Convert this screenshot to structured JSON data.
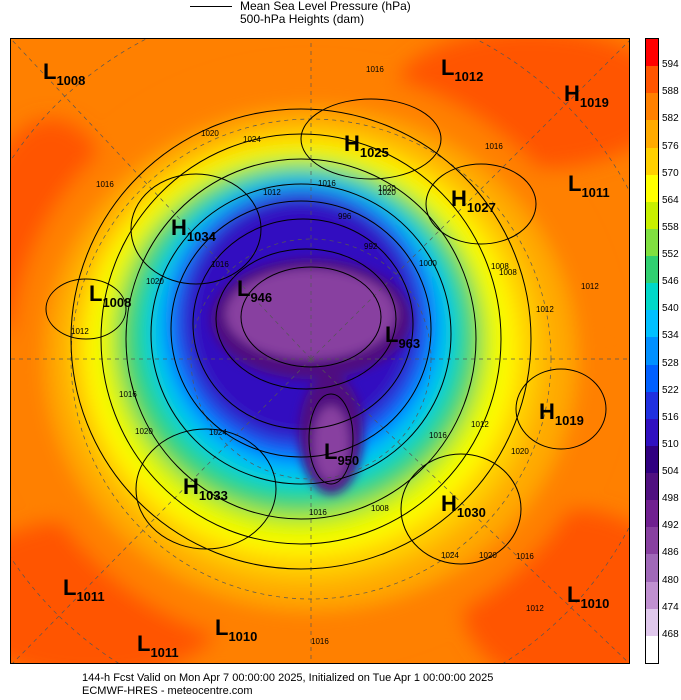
{
  "legend": {
    "mslp_label": "Mean Sea Level Pressure (hPa)",
    "heights_label": "500-hPa Heights (dam)"
  },
  "footer": {
    "line1": "144-h Fcst Valid on Mon Apr  7 00:00:00 2025, Initialized on Tue Apr  1 00:00:00 2025",
    "line2": "ECMWF-HRES - meteocentre.com"
  },
  "colorbar": {
    "ticks": [
      "594",
      "588",
      "582",
      "576",
      "570",
      "564",
      "558",
      "552",
      "546",
      "540",
      "534",
      "528",
      "522",
      "516",
      "510",
      "504",
      "498",
      "492",
      "486",
      "480",
      "474",
      "468"
    ],
    "colors": [
      "#ff0000",
      "#ff5500",
      "#ff8000",
      "#ffaa00",
      "#ffd000",
      "#ffff00",
      "#c8f000",
      "#80e040",
      "#30d070",
      "#00d8c8",
      "#00c0ff",
      "#0090ff",
      "#0060ff",
      "#2030e0",
      "#3010c0",
      "#300080",
      "#501080",
      "#702090",
      "#8840a0",
      "#a068b8",
      "#c090d0",
      "#e0c8ec",
      "#ffffff"
    ]
  },
  "pressure_centers": [
    {
      "type": "L",
      "value": "1008"
    },
    {
      "type": "L",
      "value": "1012"
    },
    {
      "type": "H",
      "value": "1019"
    },
    {
      "type": "H",
      "value": "1025"
    },
    {
      "type": "L",
      "value": "1011"
    },
    {
      "type": "H",
      "value": "1027"
    },
    {
      "type": "H",
      "value": "1034"
    },
    {
      "type": "L",
      "value": "1008"
    },
    {
      "type": "L",
      "value": "946"
    },
    {
      "type": "L",
      "value": "963"
    },
    {
      "type": "H",
      "value": "1019"
    },
    {
      "type": "L",
      "value": "950"
    },
    {
      "type": "H",
      "value": "1033"
    },
    {
      "type": "H",
      "value": "1030"
    },
    {
      "type": "L",
      "value": "1011"
    },
    {
      "type": "L",
      "value": "1010"
    },
    {
      "type": "L",
      "value": "1011"
    },
    {
      "type": "L",
      "value": "1010"
    }
  ],
  "isobar_labels": [
    "1016",
    "1020",
    "1024",
    "1016",
    "1020",
    "1016",
    "1012",
    "1016",
    "1020",
    "1016",
    "1020",
    "1012",
    "996",
    "992",
    "1000",
    "1008",
    "1012",
    "1008",
    "1012",
    "1016",
    "1020",
    "1024",
    "1012",
    "1016",
    "1008",
    "1020",
    "1024",
    "1020",
    "1016",
    "1012",
    "1016",
    "1016"
  ]
}
